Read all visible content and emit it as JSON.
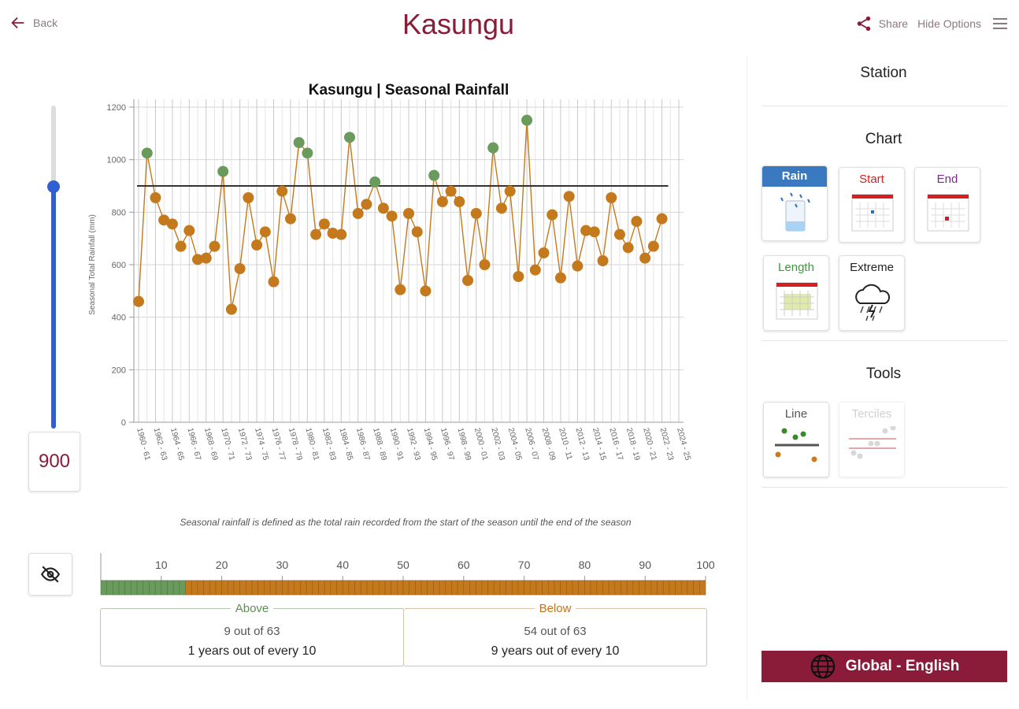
{
  "header": {
    "back_label": "Back",
    "title": "Kasungu",
    "share_label": "Share",
    "hide_options_label": "Hide Options"
  },
  "threshold": {
    "value": "900",
    "slider_min": 0,
    "slider_max": 1200,
    "slider_value": 900
  },
  "chart_data": {
    "type": "line",
    "title": "Kasungu | Seasonal Rainfall",
    "xlabel": "",
    "ylabel": "Seasonal Total Rainfall (mm)",
    "ylim": [
      0,
      1200
    ],
    "yticks": [
      0,
      200,
      400,
      600,
      800,
      1000,
      1200
    ],
    "threshold": 900,
    "x_tick_labels": [
      "1960 - 61",
      "1962 - 63",
      "1964 - 65",
      "1966 - 67",
      "1968 - 69",
      "1970 - 71",
      "1972 - 73",
      "1974 - 75",
      "1976 - 77",
      "1978 - 79",
      "1980 - 81",
      "1982 - 83",
      "1984 - 85",
      "1986 - 87",
      "1988 - 89",
      "1990 - 91",
      "1992 - 93",
      "1994 - 95",
      "1996 - 97",
      "1998 - 99",
      "2000 - 01",
      "2002 - 03",
      "2004 - 05",
      "2006 - 07",
      "2008 - 09",
      "2010 - 11",
      "2012 - 13",
      "2014 - 15",
      "2016 - 17",
      "2018 - 19",
      "2020 - 21",
      "2022 - 23",
      "2024 - 25"
    ],
    "x_start": 1960,
    "values": [
      460,
      1025,
      855,
      770,
      755,
      670,
      730,
      620,
      625,
      670,
      955,
      430,
      585,
      855,
      675,
      725,
      535,
      880,
      775,
      1065,
      1025,
      715,
      755,
      720,
      715,
      1085,
      795,
      830,
      915,
      815,
      785,
      505,
      795,
      725,
      500,
      940,
      840,
      880,
      840,
      540,
      795,
      600,
      1045,
      815,
      880,
      555,
      1150,
      580,
      645,
      790,
      550,
      860,
      595,
      730,
      725,
      615,
      855,
      715,
      665,
      765,
      625,
      670,
      775
    ],
    "above_color": "#6a9a5c",
    "below_color": "#c47a1c",
    "line_color": "#c47a1c",
    "caption": "Seasonal rainfall is defined as the total rain recorded from the start of the season until the end of the season"
  },
  "tercile_bar": {
    "ticks": [
      "10",
      "20",
      "30",
      "40",
      "50",
      "60",
      "70",
      "80",
      "90",
      "100"
    ],
    "above_count": 9,
    "total": 63,
    "above_percent": 14.3,
    "above_color": "#6a9a5c",
    "below_color": "#c47a1c"
  },
  "summary": {
    "above": {
      "label": "Above",
      "count_text": "9 out of 63",
      "freq_text": "1 years out of every 10"
    },
    "below": {
      "label": "Below",
      "count_text": "54 out of 63",
      "freq_text": "9 years out of every 10"
    }
  },
  "panel": {
    "station_title": "Station",
    "chart_title": "Chart",
    "tools_title": "Tools",
    "chart_tiles": [
      {
        "label": "Rain",
        "color": "#ffffff",
        "active": true
      },
      {
        "label": "Start",
        "color": "#d42020"
      },
      {
        "label": "End",
        "color": "#7a2a8a"
      },
      {
        "label": "Length",
        "color": "#3a9a3a"
      },
      {
        "label": "Extreme",
        "color": "#222222"
      }
    ],
    "tool_tiles": [
      {
        "label": "Line",
        "color": "#555555"
      },
      {
        "label": "Terciles",
        "color": "#999999",
        "disabled": true
      }
    ],
    "language_label": "Global - English"
  }
}
